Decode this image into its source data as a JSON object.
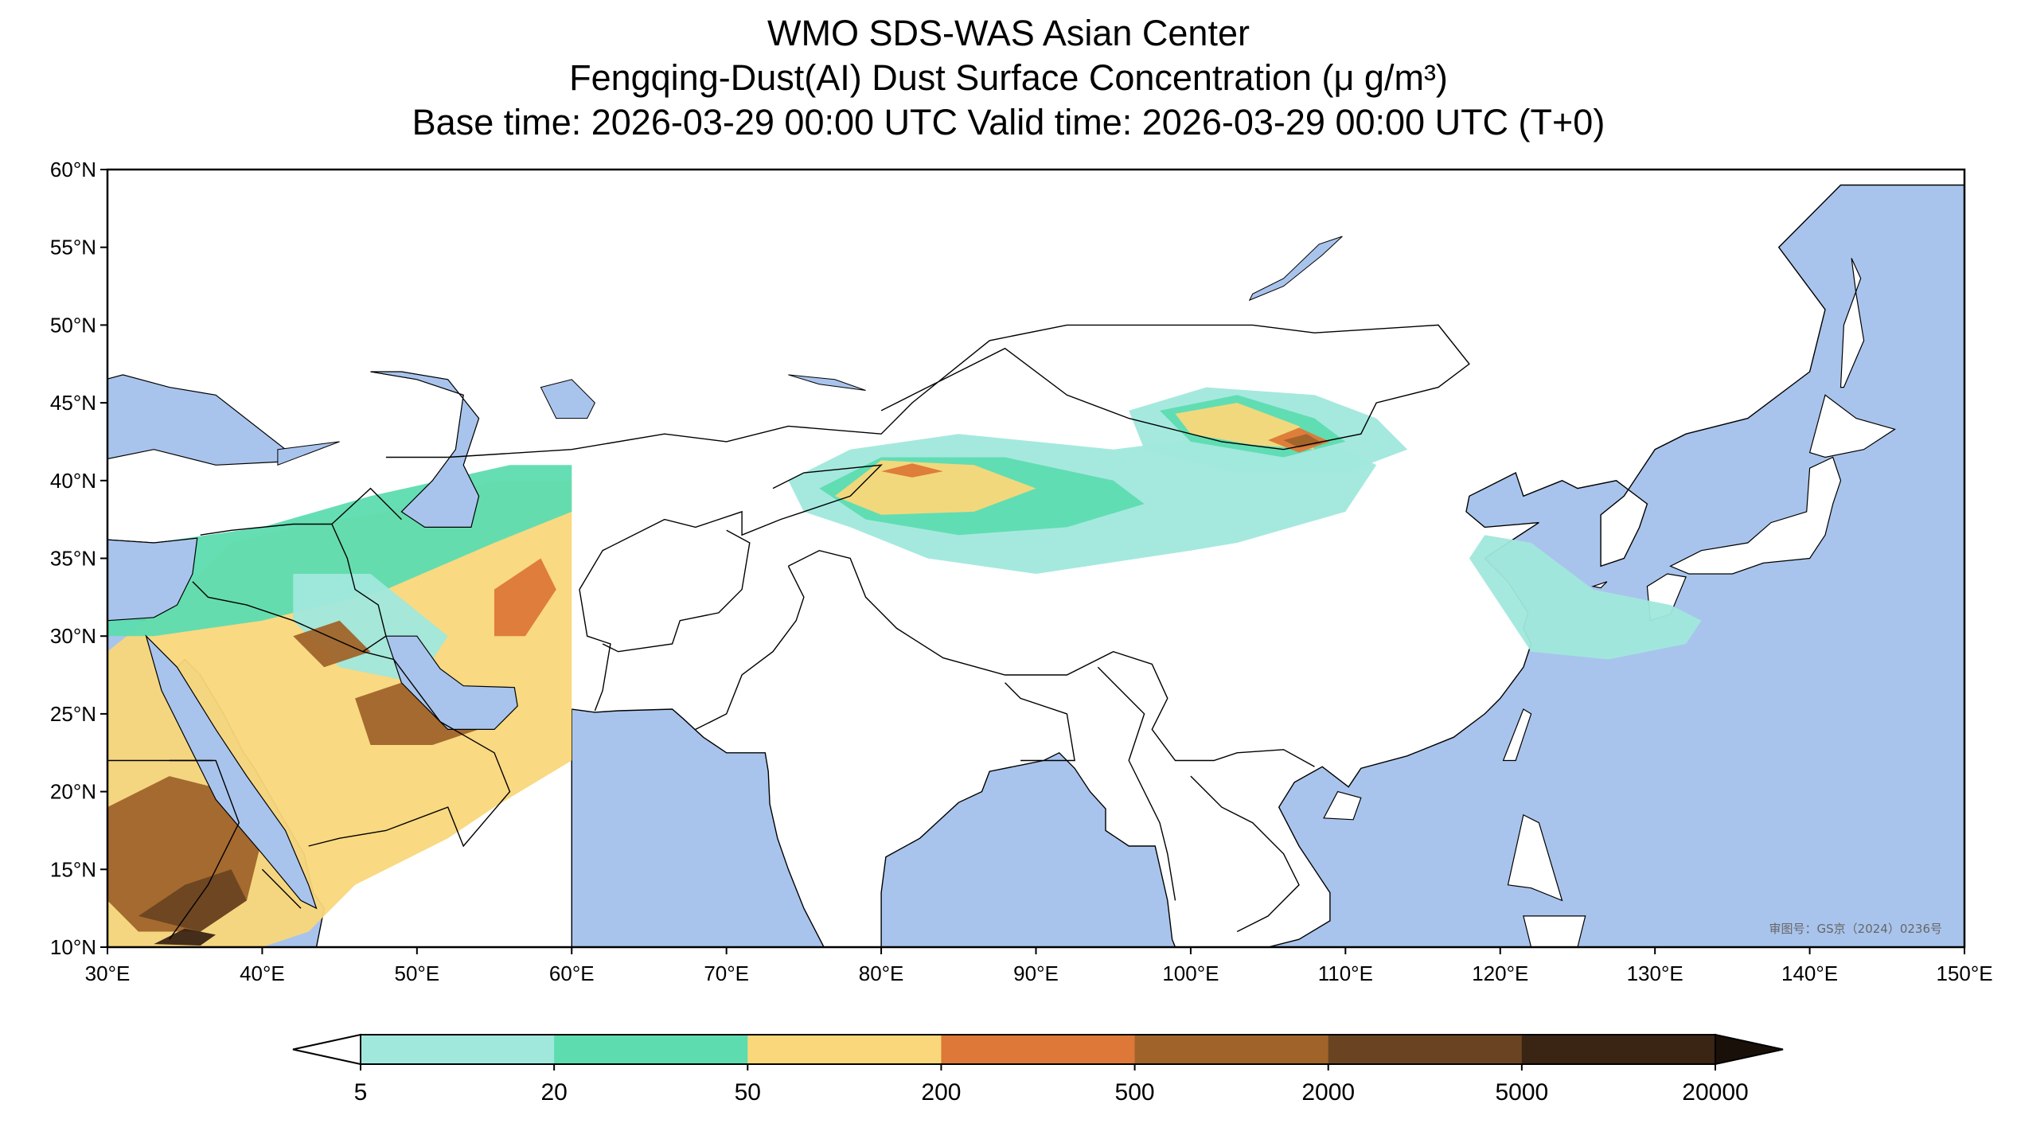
{
  "title": {
    "line1": "WMO SDS-WAS Asian Center",
    "line2": "Fengqing-Dust(AI) Dust Surface Concentration (μ g/m³)",
    "line3": "Base time: 2026-03-29 00:00 UTC Valid time: 2026-03-29 00:00 UTC (T+0)"
  },
  "map": {
    "projection": "PlateCarree",
    "lon_range": [
      30,
      150
    ],
    "lat_range": [
      10,
      60
    ],
    "lon_ticks": [
      30,
      40,
      50,
      60,
      70,
      80,
      90,
      100,
      110,
      120,
      130,
      140,
      150
    ],
    "lon_tick_labels": [
      "30°E",
      "40°E",
      "50°E",
      "60°E",
      "70°E",
      "80°E",
      "90°E",
      "100°E",
      "110°E",
      "120°E",
      "130°E",
      "140°E",
      "150°E"
    ],
    "lat_ticks": [
      10,
      15,
      20,
      25,
      30,
      35,
      40,
      45,
      50,
      55,
      60
    ],
    "lat_tick_labels": [
      "10°N",
      "15°N",
      "20°N",
      "25°N",
      "30°N",
      "35°N",
      "40°N",
      "45°N",
      "50°N",
      "55°N",
      "60°N"
    ],
    "ocean_color": "#a9c4ec",
    "land_color": "#ffffff",
    "approval_text": "审图号：GS京（2024）0236号"
  },
  "colorbar": {
    "levels": [
      "5",
      "20",
      "50",
      "200",
      "500",
      "2000",
      "5000",
      "20000"
    ],
    "colors": [
      "#a0e8dc",
      "#5ddcb0",
      "#f9d77a",
      "#dd7838",
      "#a0642a",
      "#6a4422",
      "#3a2414"
    ],
    "under_color": "#ffffff",
    "over_color": "#1a100a",
    "extend": "both"
  },
  "dust_regions": [
    {
      "name": "arabia-middle-east",
      "level_index": 2,
      "poly": [
        [
          30,
          29
        ],
        [
          35,
          33
        ],
        [
          38,
          36
        ],
        [
          42,
          37
        ],
        [
          48,
          38
        ],
        [
          55,
          40
        ],
        [
          60,
          40
        ],
        [
          60,
          22
        ],
        [
          55,
          19
        ],
        [
          52,
          17
        ],
        [
          46,
          14
        ],
        [
          43,
          11
        ],
        [
          40,
          10
        ],
        [
          30,
          10
        ]
      ]
    },
    {
      "name": "arabia-coast-band",
      "level_index": 1,
      "poly": [
        [
          30,
          33
        ],
        [
          33,
          36
        ],
        [
          40,
          37
        ],
        [
          47,
          39
        ],
        [
          56,
          41
        ],
        [
          60,
          41
        ],
        [
          60,
          38
        ],
        [
          55,
          36
        ],
        [
          48,
          33
        ],
        [
          40,
          31
        ],
        [
          33,
          30
        ],
        [
          30,
          30
        ]
      ]
    },
    {
      "name": "arabia-inner-light",
      "level_index": 0,
      "poly": [
        [
          42,
          34
        ],
        [
          47,
          34
        ],
        [
          52,
          30
        ],
        [
          50,
          27
        ],
        [
          45,
          28
        ],
        [
          42,
          31
        ]
      ]
    },
    {
      "name": "arabia-heavy-rubalkhali",
      "level_index": 4,
      "poly": [
        [
          46,
          26
        ],
        [
          49,
          27
        ],
        [
          53,
          26
        ],
        [
          54,
          24
        ],
        [
          51,
          23
        ],
        [
          47,
          23
        ]
      ]
    },
    {
      "name": "arabia-heavy-nafud",
      "level_index": 4,
      "poly": [
        [
          42,
          30
        ],
        [
          45,
          31
        ],
        [
          47,
          29
        ],
        [
          44,
          28
        ]
      ]
    },
    {
      "name": "arabia-heavy-iran",
      "level_index": 3,
      "poly": [
        [
          55,
          33
        ],
        [
          58,
          35
        ],
        [
          59,
          33
        ],
        [
          57,
          30
        ],
        [
          55,
          30
        ]
      ]
    },
    {
      "name": "sudan-heavy",
      "level_index": 4,
      "poly": [
        [
          30,
          19
        ],
        [
          34,
          21
        ],
        [
          38,
          20
        ],
        [
          40,
          17
        ],
        [
          39,
          13
        ],
        [
          36,
          11
        ],
        [
          32,
          11
        ],
        [
          30,
          13
        ]
      ]
    },
    {
      "name": "sudan-core",
      "level_index": 5,
      "poly": [
        [
          32,
          12
        ],
        [
          35,
          14
        ],
        [
          38,
          15
        ],
        [
          39,
          13
        ],
        [
          36,
          11
        ]
      ]
    },
    {
      "name": "sudan-extreme",
      "level_index": 6,
      "poly": [
        [
          33,
          10.2
        ],
        [
          35,
          11.2
        ],
        [
          37,
          10.8
        ],
        [
          36,
          10.1
        ]
      ]
    },
    {
      "name": "taklimakan-light",
      "level_index": 0,
      "poly": [
        [
          74,
          40
        ],
        [
          78,
          42
        ],
        [
          85,
          43
        ],
        [
          95,
          42
        ],
        [
          103,
          43
        ],
        [
          110,
          42
        ],
        [
          112,
          41
        ],
        [
          110,
          38
        ],
        [
          103,
          36
        ],
        [
          100,
          35.5
        ],
        [
          90,
          34
        ],
        [
          83,
          35
        ],
        [
          78,
          37
        ],
        [
          75,
          38
        ]
      ]
    },
    {
      "name": "taklimakan-mid",
      "level_index": 1,
      "poly": [
        [
          76,
          39.5
        ],
        [
          80,
          41.5
        ],
        [
          88,
          41.5
        ],
        [
          95,
          40
        ],
        [
          97,
          38.5
        ],
        [
          92,
          37
        ],
        [
          85,
          36.5
        ],
        [
          79,
          37.5
        ]
      ]
    },
    {
      "name": "taklimakan-high",
      "level_index": 2,
      "poly": [
        [
          77,
          39
        ],
        [
          80,
          41.3
        ],
        [
          86,
          41
        ],
        [
          90,
          39.5
        ],
        [
          86,
          38
        ],
        [
          80,
          37.8
        ]
      ]
    },
    {
      "name": "taklimakan-orange",
      "level_index": 3,
      "poly": [
        [
          80,
          40.6
        ],
        [
          82,
          41.1
        ],
        [
          84,
          40.6
        ],
        [
          82,
          40.2
        ]
      ]
    },
    {
      "name": "gobi-light",
      "level_index": 0,
      "poly": [
        [
          96,
          44.5
        ],
        [
          101,
          46
        ],
        [
          108,
          45.5
        ],
        [
          112,
          44
        ],
        [
          114,
          42
        ],
        [
          110,
          40.5
        ],
        [
          103,
          40.5
        ],
        [
          97,
          42
        ]
      ]
    },
    {
      "name": "gobi-mid",
      "level_index": 1,
      "poly": [
        [
          98,
          44.5
        ],
        [
          103,
          45.5
        ],
        [
          108,
          44
        ],
        [
          110,
          42.5
        ],
        [
          106,
          41.5
        ],
        [
          100,
          42.5
        ]
      ]
    },
    {
      "name": "gobi-high",
      "level_index": 2,
      "poly": [
        [
          99,
          44.3
        ],
        [
          103,
          45
        ],
        [
          107,
          43.5
        ],
        [
          108,
          42
        ],
        [
          104,
          42.3
        ],
        [
          100,
          43
        ]
      ]
    },
    {
      "name": "gobi-heavy",
      "level_index": 3,
      "poly": [
        [
          105,
          42.6
        ],
        [
          107,
          43.4
        ],
        [
          109,
          42.5
        ],
        [
          107,
          41.8
        ]
      ]
    },
    {
      "name": "gobi-core",
      "level_index": 4,
      "poly": [
        [
          106,
          42.6
        ],
        [
          107.5,
          43
        ],
        [
          108.5,
          42.4
        ],
        [
          107,
          42.1
        ]
      ]
    },
    {
      "name": "east-china-sea-plume",
      "level_index": 0,
      "poly": [
        [
          119,
          36.5
        ],
        [
          122,
          36
        ],
        [
          126,
          33
        ],
        [
          131,
          32
        ],
        [
          133,
          31
        ],
        [
          132,
          29.5
        ],
        [
          127,
          28.5
        ],
        [
          122,
          29
        ],
        [
          120,
          32
        ],
        [
          118,
          35
        ]
      ]
    }
  ]
}
